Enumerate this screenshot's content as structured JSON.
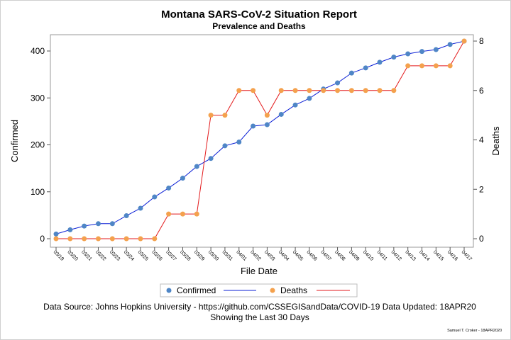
{
  "chart_data": {
    "type": "line",
    "title": "Montana SARS-CoV-2 Situation Report",
    "subtitle": "Prevalence and Deaths",
    "xlabel": "File Date",
    "ylabel": "Confirmed",
    "y2label": "Deaths",
    "categories": [
      "03/19",
      "03/20",
      "03/21",
      "03/22",
      "03/23",
      "03/24",
      "03/25",
      "03/26",
      "03/27",
      "03/28",
      "03/29",
      "03/30",
      "03/31",
      "04/01",
      "04/02",
      "04/03",
      "04/04",
      "04/05",
      "04/06",
      "04/07",
      "04/08",
      "04/09",
      "04/10",
      "04/11",
      "04/12",
      "04/13",
      "04/14",
      "04/15",
      "04/16",
      "04/17"
    ],
    "ylim": [
      0,
      400
    ],
    "yticks": [
      0,
      100,
      200,
      300,
      400
    ],
    "y2lim": [
      0,
      8
    ],
    "y2ticks": [
      0,
      2,
      4,
      6,
      8
    ],
    "series": [
      {
        "name": "Confirmed",
        "axis": "left",
        "marker_color": "#4f86c6",
        "line_color": "#0b1fd6",
        "values": [
          10,
          19,
          27,
          32,
          32,
          49,
          65,
          89,
          108,
          129,
          154,
          171,
          198,
          206,
          240,
          243,
          265,
          285,
          299,
          319,
          332,
          353,
          364,
          376,
          387,
          394,
          399,
          403,
          414,
          421
        ]
      },
      {
        "name": "Deaths",
        "axis": "right",
        "marker_color": "#f4a14d",
        "line_color": "#e31a1c",
        "values": [
          0,
          0,
          0,
          0,
          0,
          0,
          0,
          0,
          1,
          1,
          1,
          5,
          5,
          6,
          6,
          5,
          6,
          6,
          6,
          6,
          6,
          6,
          6,
          6,
          6,
          7,
          7,
          7,
          7,
          8
        ]
      }
    ],
    "grid": false,
    "legend_position": "bottom"
  },
  "footnote_line1": "Data Source: Johns Hopkins University - https://github.com/CSSEGISandData/COVID-19 Data Updated: 18APR20",
  "footnote_line2": "Showing the Last 30 Days",
  "signature": "Samuel T. Croker - 18APR2020"
}
